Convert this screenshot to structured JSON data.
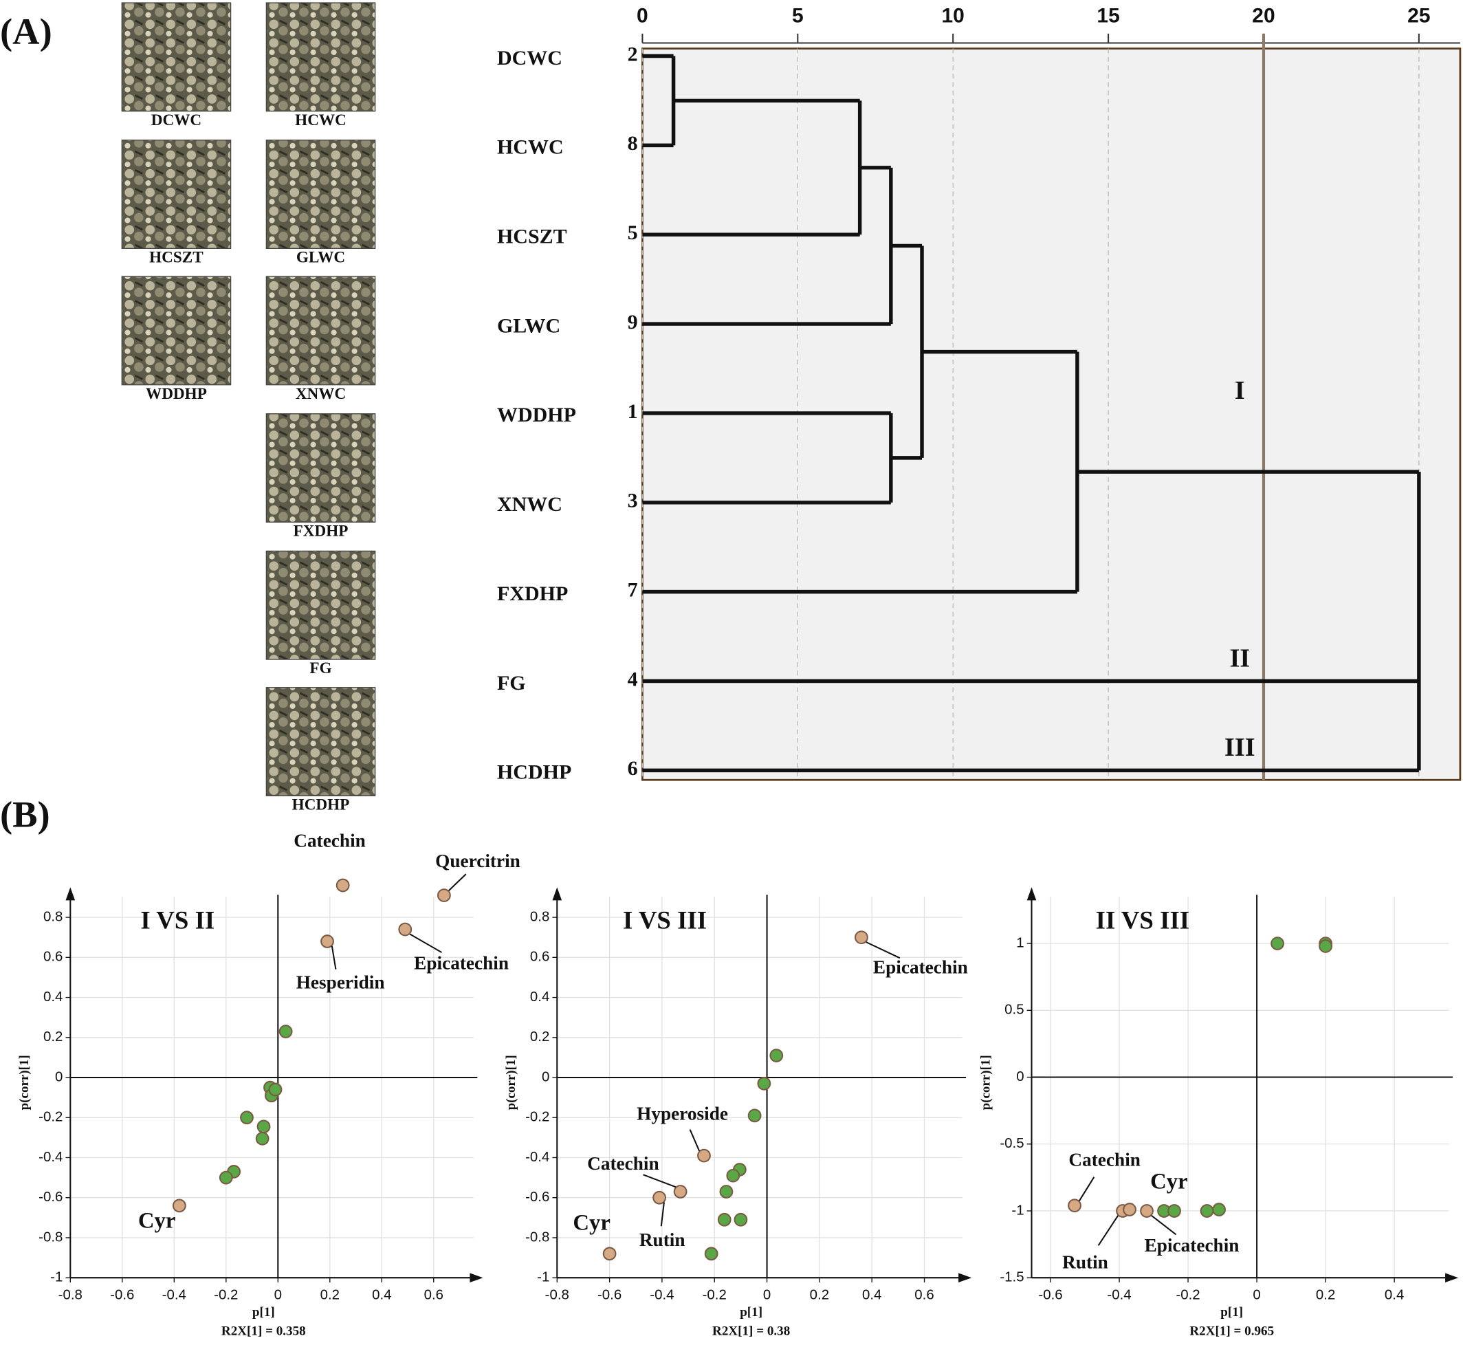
{
  "panel_labels": [
    "(A)",
    "(B)"
  ],
  "photos": [
    "DCWC",
    "HCWC",
    "HCSZT",
    "GLWC",
    "WDDHP",
    "XNWC",
    "FXDHP",
    "FG",
    "HCDHP"
  ],
  "chart_data": [
    {
      "type": "dendrogram",
      "leaves": [
        "DCWC",
        "HCWC",
        "HCSZT",
        "GLWC",
        "WDDHP",
        "XNWC",
        "FXDHP",
        "FG",
        "HCDHP"
      ],
      "leaf_ids": [
        2,
        8,
        5,
        9,
        1,
        3,
        7,
        4,
        6
      ],
      "merges": [
        {
          "children": [
            0,
            1
          ],
          "height": 1
        },
        {
          "children": [
            9,
            2
          ],
          "height": 7
        },
        {
          "children": [
            10,
            3
          ],
          "height": 8
        },
        {
          "children": [
            4,
            5
          ],
          "height": 8
        },
        {
          "children": [
            11,
            12
          ],
          "height": 9
        },
        {
          "children": [
            13,
            6
          ],
          "height": 14
        },
        {
          "children": [
            14,
            7,
            8
          ],
          "height": 25
        }
      ],
      "cut": 20,
      "cluster_labels": [
        "I",
        "II",
        "III"
      ],
      "xlim": [
        0,
        25
      ],
      "xticks": [
        0,
        5,
        10,
        15,
        20,
        25
      ]
    },
    {
      "type": "scatter",
      "title": "I VS II",
      "xlabel": "p[1]",
      "note": "R2X[1] = 0.358",
      "ylabel": "p(corr)[1]",
      "xlim": [
        -0.8,
        0.79
      ],
      "ylim": [
        -1,
        0.95
      ],
      "xticks": [
        -0.8,
        -0.6,
        -0.4,
        -0.2,
        0,
        0.2,
        0.4,
        0.6
      ],
      "yticks": [
        -1,
        -0.8,
        -0.6,
        -0.4,
        -0.2,
        0,
        0.2,
        0.4,
        0.6,
        0.8
      ],
      "series": [
        {
          "color": "#d6a985",
          "x": [
            0.25,
            0.64,
            0.49,
            0.19,
            -0.38
          ],
          "y": [
            0.96,
            0.91,
            0.74,
            0.68,
            -0.64
          ],
          "labels": [
            "Catechin",
            "Quercitrin",
            "Epicatechin",
            "Hesperidin",
            "Cyr"
          ]
        },
        {
          "color": "#5aa845",
          "x": [
            0.03,
            -0.03,
            -0.025,
            -0.01,
            -0.12,
            -0.055,
            -0.06,
            -0.17,
            -0.2
          ],
          "y": [
            0.23,
            -0.05,
            -0.09,
            -0.06,
            -0.2,
            -0.245,
            -0.305,
            -0.47,
            -0.5
          ]
        }
      ]
    },
    {
      "type": "scatter",
      "title": "I VS III",
      "xlabel": "p[1]",
      "note": "R2X[1] = 0.38",
      "ylabel": "p(corr)[1]",
      "xlim": [
        -0.8,
        0.78
      ],
      "ylim": [
        -1,
        0.95
      ],
      "xticks": [
        -0.8,
        -0.6,
        -0.4,
        -0.2,
        0,
        0.2,
        0.4,
        0.6
      ],
      "yticks": [
        -1,
        -0.8,
        -0.6,
        -0.4,
        -0.2,
        0,
        0.2,
        0.4,
        0.6,
        0.8
      ],
      "series": [
        {
          "color": "#d6a985",
          "x": [
            0.36,
            -0.24,
            -0.33,
            -0.41,
            -0.6
          ],
          "y": [
            0.7,
            -0.39,
            -0.57,
            -0.6,
            -0.88
          ],
          "labels": [
            "Epicatechin",
            "Hyperoside",
            "Catechin",
            "Rutin",
            "Cyr"
          ]
        },
        {
          "color": "#5aa845",
          "x": [
            0.036,
            -0.011,
            -0.047,
            -0.104,
            -0.129,
            -0.155,
            -0.162,
            -0.1,
            -0.212
          ],
          "y": [
            0.11,
            -0.03,
            -0.19,
            -0.46,
            -0.49,
            -0.57,
            -0.71,
            -0.71,
            -0.88
          ]
        }
      ]
    },
    {
      "type": "scatter",
      "title": "II VS III",
      "xlabel": "p[1]",
      "note": "R2X[1] = 0.965",
      "ylabel": "p(corr)[1]",
      "xlim": [
        -0.655,
        0.586
      ],
      "ylim": [
        -1.5,
        1.42
      ],
      "xticks": [
        -0.6,
        -0.4,
        -0.2,
        0,
        0.2,
        0.4
      ],
      "yticks": [
        -1.5,
        -1,
        -0.5,
        0,
        0.5,
        1
      ],
      "series": [
        {
          "color": "#d6a985",
          "x": [
            -0.53,
            -0.39,
            -0.37,
            -0.32
          ],
          "y": [
            -0.96,
            -1,
            -0.99,
            -1
          ],
          "labels": [
            "Catechin",
            "Rutin",
            "Cyr",
            "Epicatechin"
          ]
        },
        {
          "color": "#5aa845",
          "x": [
            0.06,
            0.2,
            0.2,
            -0.27,
            -0.24,
            -0.145,
            -0.11
          ],
          "y": [
            1,
            1,
            0.98,
            -1,
            -1,
            -1,
            -0.99
          ]
        }
      ]
    }
  ]
}
